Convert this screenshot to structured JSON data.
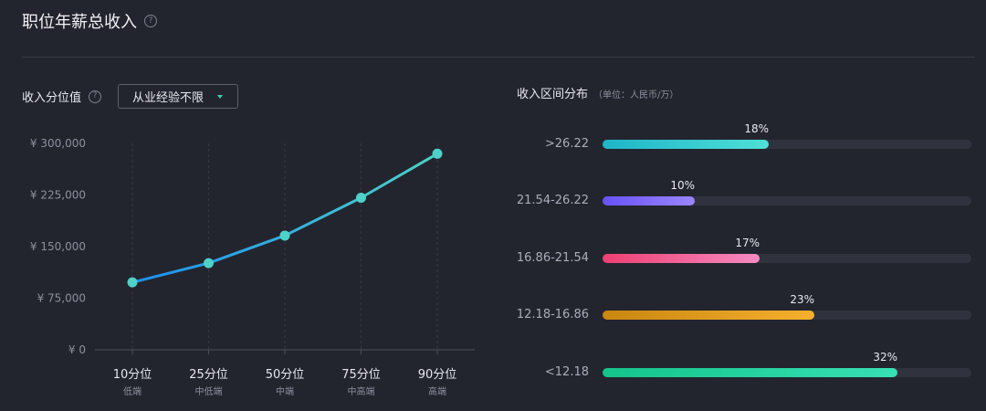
{
  "header": {
    "title": "职位年薪总收入",
    "help": "?"
  },
  "left_panel": {
    "label": "收入分位值",
    "help": "?",
    "select_value": "从业经验不限",
    "accent_color": "#3ecfb2"
  },
  "right_panel": {
    "title": "收入区间分布",
    "unit": "（单位：人民币/万）"
  },
  "chart_data": [
    {
      "type": "line",
      "categories": [
        "10分位",
        "25分位",
        "50分位",
        "75分位",
        "90分位"
      ],
      "sublabels": [
        "低端",
        "中低端",
        "中端",
        "中高端",
        "高端"
      ],
      "values": [
        98000,
        126000,
        166000,
        221000,
        285000
      ],
      "yticks": [
        "¥ 0",
        "¥ 75,000",
        "¥ 150,000",
        "¥ 225,000",
        "¥ 300,000"
      ],
      "ylim": [
        0,
        300000
      ],
      "grid": true,
      "colors": {
        "start": "#1b8ff2",
        "end": "#4ed1c8",
        "marker": "#4ed1c8"
      }
    },
    {
      "type": "bar",
      "orientation": "horizontal",
      "categories": [
        ">26.22",
        "21.54-26.22",
        "16.86-21.54",
        "12.18-16.86",
        "<12.18"
      ],
      "values": [
        18,
        10,
        17,
        23,
        32
      ],
      "value_labels": [
        "18%",
        "10%",
        "17%",
        "23%",
        "32%"
      ],
      "xlim": [
        0,
        40
      ],
      "gradients": [
        [
          "#1eb5c8",
          "#4ee0d8"
        ],
        [
          "#6752f5",
          "#9a86ff"
        ],
        [
          "#ef3f73",
          "#f48ac0"
        ],
        [
          "#c98610",
          "#f6b02e"
        ],
        [
          "#14c48a",
          "#38e0b4"
        ]
      ]
    }
  ]
}
